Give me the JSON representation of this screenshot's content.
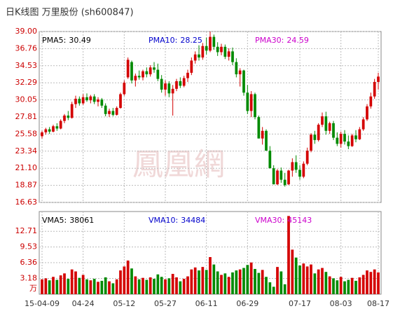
{
  "chart_data": {
    "type": "candlestick",
    "title": "日K线图 万里股份 (sh600847)",
    "watermark": "鳳凰網",
    "up_color": "#d40000",
    "down_color": "#008a00",
    "grid": true,
    "ylim": [
      16.63,
      39.0
    ],
    "yticks": [
      16.63,
      18.87,
      {
        "value": 21.1,
        "label": "21.10"
      },
      23.34,
      25.58,
      27.81,
      30.05,
      32.29,
      34.53,
      36.76,
      {
        "value": 39.0,
        "label": "39.00"
      }
    ],
    "price_legend": [
      {
        "name": "PMA5:",
        "value": 30.49,
        "color": "#000000"
      },
      {
        "name": "PMA10:",
        "value": 28.25,
        "color": "#0000cc"
      },
      {
        "name": "PMA30:",
        "value": 24.59,
        "color": "#cc00cc"
      }
    ],
    "volume_legend": [
      {
        "name": "VMA5:",
        "value": 38061,
        "color": "#000000"
      },
      {
        "name": "VMA10:",
        "value": 34484,
        "color": "#0000cc"
      },
      {
        "name": "VMA30:",
        "value": 45143,
        "color": "#cc00cc"
      }
    ],
    "volume_ylim": [
      0,
      16.7
    ],
    "volume_yticks": [
      3.18,
      6.36,
      9.53,
      12.71
    ],
    "volume_unit": "万",
    "categories": [
      "15-04-09",
      null,
      null,
      null,
      null,
      null,
      null,
      null,
      null,
      null,
      null,
      "04-24",
      null,
      null,
      null,
      null,
      null,
      null,
      null,
      null,
      null,
      null,
      "05-12",
      null,
      null,
      null,
      null,
      null,
      null,
      null,
      null,
      null,
      null,
      "05-27",
      null,
      null,
      null,
      null,
      null,
      null,
      null,
      null,
      null,
      null,
      "06-11",
      null,
      null,
      null,
      null,
      null,
      null,
      null,
      null,
      null,
      null,
      "06-29",
      null,
      null,
      null,
      null,
      null,
      null,
      null,
      null,
      null,
      null,
      null,
      null,
      null,
      "07-17",
      null,
      null,
      null,
      null,
      null,
      null,
      null,
      null,
      null,
      null,
      "08-03",
      null,
      null,
      null,
      null,
      null,
      null,
      null,
      null,
      null,
      "08-17"
    ],
    "open": [
      25.3,
      25.8,
      26.2,
      25.9,
      26.6,
      26.3,
      27.3,
      28.0,
      27.7,
      29.5,
      30.2,
      29.6,
      30.4,
      30.0,
      30.5,
      29.8,
      30.1,
      29.3,
      28.2,
      28.6,
      28.1,
      29.0,
      30.8,
      33.0,
      35.0,
      32.6,
      33.2,
      33.0,
      33.8,
      33.4,
      34.3,
      34.0,
      32.8,
      31.4,
      32.2,
      30.9,
      31.5,
      32.5,
      31.9,
      32.9,
      33.6,
      35.2,
      36.0,
      35.6,
      37.1,
      36.5,
      38.3,
      37.0,
      36.3,
      37.0,
      35.7,
      36.4,
      35.0,
      33.4,
      33.9,
      31.0,
      28.6,
      30.8,
      27.8,
      25.0,
      26.0,
      23.4,
      21.1,
      19.0,
      20.8,
      19.6,
      19.0,
      20.8,
      21.9,
      20.9,
      20.0,
      21.7,
      23.4,
      25.5,
      24.8,
      26.8,
      27.9,
      26.0,
      27.0,
      25.1,
      24.3,
      25.6,
      24.6,
      24.0,
      25.4,
      24.9,
      26.2,
      27.5,
      29.2,
      30.5,
      32.4
    ],
    "high": [
      26.0,
      26.4,
      26.5,
      26.8,
      27.0,
      27.5,
      28.2,
      28.6,
      29.8,
      30.6,
      30.5,
      30.8,
      30.9,
      30.7,
      30.8,
      30.4,
      30.3,
      29.6,
      28.9,
      29.0,
      29.2,
      31.0,
      32.6,
      35.6,
      35.2,
      33.5,
      33.9,
      34.0,
      34.3,
      34.6,
      35.0,
      34.8,
      33.3,
      32.6,
      32.5,
      32.0,
      32.8,
      33.0,
      33.2,
      34.0,
      35.6,
      36.4,
      37.2,
      37.5,
      38.2,
      39.0,
      38.6,
      37.6,
      37.4,
      37.3,
      36.8,
      36.9,
      35.5,
      34.2,
      34.0,
      32.0,
      31.2,
      31.0,
      28.0,
      26.5,
      26.2,
      24.0,
      21.5,
      21.0,
      21.2,
      20.5,
      20.9,
      22.4,
      22.8,
      21.5,
      22.0,
      23.8,
      25.7,
      26.0,
      27.0,
      28.4,
      28.5,
      27.2,
      27.3,
      25.8,
      25.9,
      26.1,
      25.4,
      25.6,
      26.1,
      26.5,
      27.8,
      29.5,
      31.0,
      32.8,
      33.6
    ],
    "low": [
      25.0,
      25.5,
      25.6,
      25.8,
      26.0,
      26.2,
      27.0,
      27.4,
      27.6,
      29.0,
      29.3,
      29.4,
      29.8,
      29.6,
      29.5,
      29.2,
      29.0,
      27.9,
      27.8,
      27.9,
      28.0,
      28.9,
      30.6,
      32.8,
      32.2,
      31.8,
      32.7,
      32.6,
      33.0,
      33.1,
      33.6,
      32.5,
      31.0,
      30.6,
      30.4,
      28.0,
      31.2,
      31.6,
      31.7,
      32.4,
      33.3,
      34.8,
      35.2,
      35.3,
      36.0,
      36.3,
      36.6,
      35.8,
      35.9,
      35.4,
      35.2,
      34.6,
      33.0,
      31.8,
      30.6,
      28.2,
      27.8,
      27.5,
      25.0,
      24.2,
      23.4,
      21.1,
      19.0,
      18.9,
      19.2,
      18.7,
      18.9,
      20.0,
      20.5,
      19.6,
      19.8,
      21.5,
      23.2,
      24.3,
      24.6,
      26.5,
      25.5,
      25.6,
      24.8,
      24.0,
      23.8,
      24.2,
      23.6,
      23.9,
      24.5,
      24.8,
      26.0,
      27.3,
      28.9,
      30.2,
      31.4
    ],
    "close": [
      25.8,
      26.2,
      25.9,
      26.6,
      26.3,
      27.3,
      28.0,
      27.7,
      29.5,
      30.2,
      29.6,
      30.4,
      30.0,
      30.5,
      29.8,
      30.1,
      29.3,
      28.2,
      28.6,
      28.1,
      29.0,
      30.8,
      32.3,
      35.3,
      32.6,
      33.2,
      33.0,
      33.8,
      33.4,
      34.3,
      34.0,
      32.8,
      31.4,
      32.2,
      30.9,
      31.5,
      32.5,
      31.9,
      32.9,
      33.6,
      35.2,
      36.0,
      35.6,
      37.1,
      36.5,
      38.3,
      37.0,
      36.3,
      37.0,
      35.7,
      36.4,
      35.0,
      33.4,
      33.9,
      31.0,
      28.6,
      30.8,
      27.8,
      25.0,
      26.0,
      23.4,
      21.1,
      19.0,
      20.8,
      19.6,
      18.9,
      20.8,
      21.9,
      20.9,
      20.0,
      21.7,
      23.4,
      25.5,
      24.8,
      26.8,
      27.9,
      26.0,
      27.0,
      25.1,
      24.3,
      25.6,
      24.6,
      24.0,
      25.4,
      24.9,
      26.2,
      27.5,
      29.2,
      30.5,
      32.4,
      33.1
    ],
    "volume": [
      3.0,
      3.2,
      2.8,
      3.5,
      2.9,
      3.8,
      4.2,
      3.1,
      5.0,
      4.6,
      3.3,
      3.9,
      3.0,
      2.8,
      3.1,
      2.5,
      2.7,
      3.4,
      2.6,
      2.2,
      3.0,
      4.8,
      5.6,
      6.8,
      5.2,
      3.6,
      3.0,
      3.3,
      2.9,
      3.4,
      3.1,
      4.0,
      3.5,
      3.0,
      3.2,
      4.1,
      3.4,
      2.6,
      3.1,
      3.6,
      5.0,
      5.4,
      4.8,
      5.5,
      4.9,
      7.5,
      6.0,
      4.6,
      3.9,
      4.2,
      3.5,
      4.4,
      4.8,
      5.0,
      5.3,
      5.9,
      6.4,
      5.1,
      4.3,
      4.9,
      3.5,
      2.4,
      1.5,
      5.5,
      4.6,
      2.0,
      15.8,
      9.0,
      7.4,
      5.8,
      6.2,
      5.6,
      6.0,
      4.2,
      5.0,
      5.3,
      4.5,
      3.6,
      3.2,
      2.8,
      3.5,
      2.6,
      2.9,
      3.3,
      2.7,
      3.4,
      3.9,
      4.8,
      4.5,
      5.0,
      4.4
    ]
  }
}
